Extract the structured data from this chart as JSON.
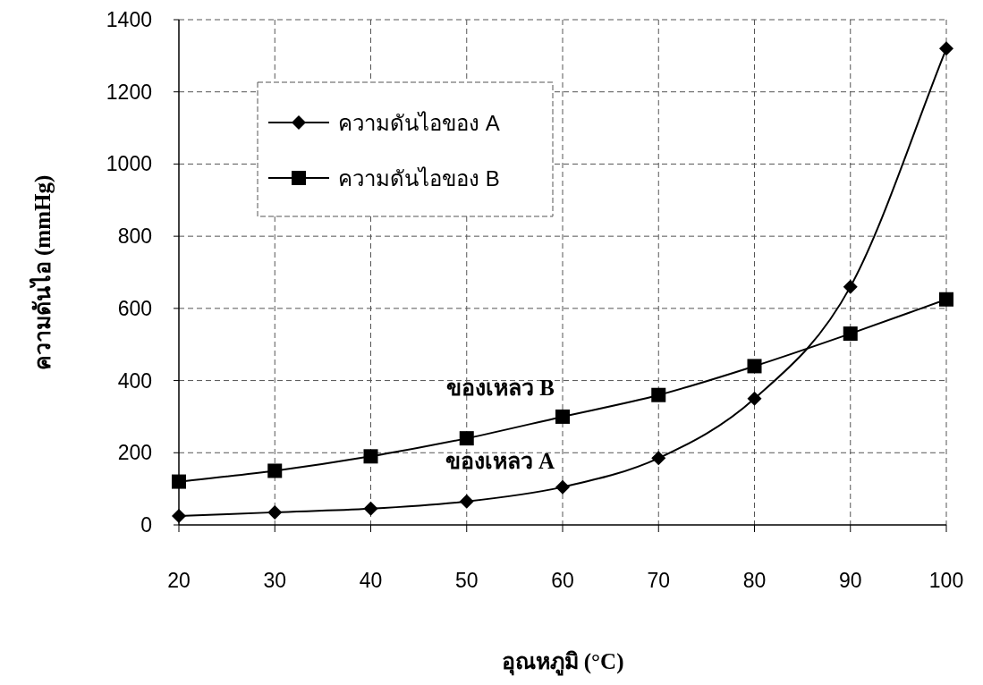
{
  "chart_data": {
    "type": "line",
    "xlabel": "อุณหภูมิ (°C)",
    "ylabel": "ความดันไอ (mmHg)",
    "categories": [
      "20",
      "30",
      "40",
      "50",
      "60",
      "70",
      "80",
      "90",
      "100"
    ],
    "series": [
      {
        "name": "ความดันไอของ A",
        "color": "#000000",
        "marker": "diamond",
        "values": [
          25,
          35,
          45,
          65,
          105,
          185,
          350,
          660,
          1320
        ]
      },
      {
        "name": "ความดันไอของ B",
        "color": "#000000",
        "marker": "square",
        "values": [
          120,
          150,
          190,
          240,
          300,
          360,
          440,
          530,
          625
        ]
      }
    ],
    "ylim": [
      0,
      1400
    ],
    "yticks": [
      0,
      200,
      400,
      600,
      800,
      1000,
      1200,
      1400
    ],
    "grid": true,
    "legend": "top left",
    "line_style": "solid",
    "annotations": [
      "ของเหลว B",
      "ของเหลว A"
    ]
  }
}
